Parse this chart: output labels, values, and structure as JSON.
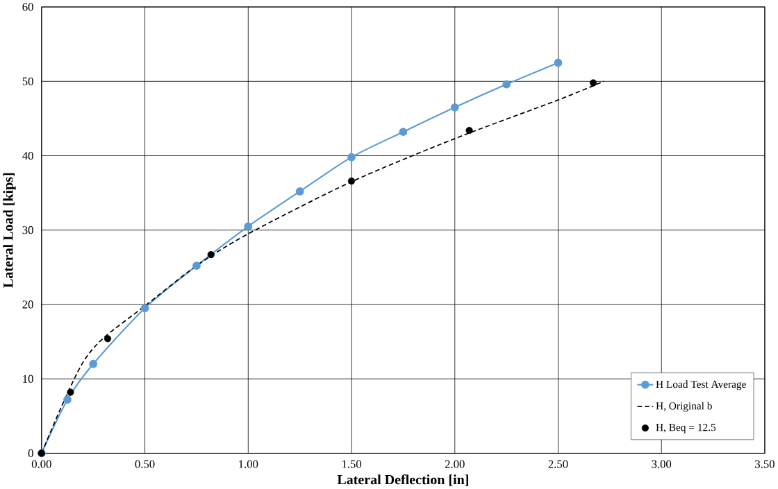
{
  "chart_data": {
    "type": "line",
    "xlabel": "Lateral Deflection [in]",
    "ylabel": "Lateral Load [kips]",
    "xlim": [
      0,
      3.5
    ],
    "ylim": [
      0,
      60
    ],
    "xticks": [
      {
        "value": 0,
        "label": "0.00"
      },
      {
        "value": 0.5,
        "label": "0.50"
      },
      {
        "value": 1,
        "label": "1.00"
      },
      {
        "value": 1.5,
        "label": "1.50"
      },
      {
        "value": 2,
        "label": "2.00"
      },
      {
        "value": 2.5,
        "label": "2.50"
      },
      {
        "value": 3,
        "label": "3.00"
      },
      {
        "value": 3.5,
        "label": "3.50"
      }
    ],
    "yticks": [
      0,
      10,
      20,
      30,
      40,
      50,
      60
    ],
    "grid": true,
    "legend": "bottom right",
    "series": [
      {
        "name": "H Load Test Average",
        "color": "#5b9bd5",
        "marker": "circle",
        "line_style": "solid",
        "x": [
          0,
          0.125,
          0.25,
          0.5,
          0.75,
          1.0,
          1.25,
          1.5,
          1.75,
          2.0,
          2.25,
          2.5
        ],
        "values": [
          0,
          7.2,
          12,
          19.5,
          25.2,
          30.5,
          35.2,
          39.8,
          43.2,
          46.5,
          49.6,
          52.5
        ]
      },
      {
        "name": "H, Original b",
        "color": "#000000",
        "marker": "none",
        "line_style": "dashed",
        "x": [
          0,
          0.1,
          0.2,
          0.3,
          0.5,
          0.75,
          1.0,
          1.5,
          2.0,
          2.5,
          2.72
        ],
        "values": [
          0,
          6.5,
          12.2,
          15.5,
          19.8,
          25.2,
          29.5,
          36.5,
          42.3,
          47.5,
          50
        ]
      },
      {
        "name": "H, Beq = 12.5",
        "color": "#000000",
        "type": "scatter",
        "marker": "circle",
        "x": [
          0,
          0.14,
          0.32,
          0.82,
          1.5,
          2.07,
          2.67
        ],
        "values": [
          0,
          8.2,
          15.4,
          26.7,
          36.6,
          43.4,
          49.8
        ]
      }
    ]
  }
}
